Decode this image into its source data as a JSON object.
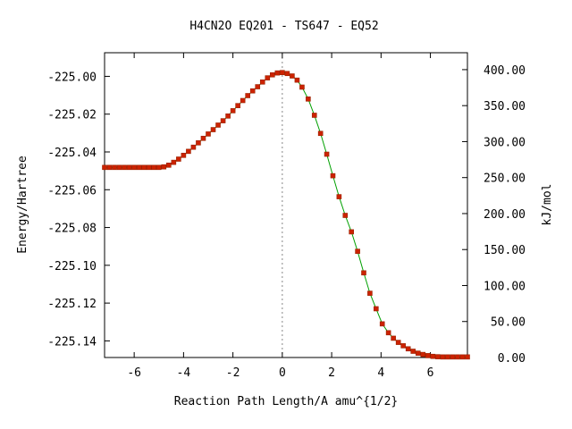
{
  "chart_data": {
    "type": "line",
    "title": "H4CN2O   EQ201 - TS647 - EQ52",
    "xlabel": "Reaction Path Length/A amu^{1/2}",
    "ylabel": "Energy/Hartree",
    "y2label": "kJ/mol",
    "xlim": [
      -7.2,
      7.5
    ],
    "ylim": [
      -225.1488,
      -224.9875
    ],
    "y2lim": [
      0,
      423.5
    ],
    "x_ticks": [
      -6,
      -4,
      -2,
      0,
      2,
      4,
      6
    ],
    "x_tick_labels": [
      "-6",
      "-4",
      "-2",
      "0",
      "2",
      "4",
      "6"
    ],
    "y_ticks": [
      -225.0,
      -225.02,
      -225.04,
      -225.06,
      -225.08,
      -225.1,
      -225.12,
      -225.14
    ],
    "y_tick_labels": [
      "-225.00",
      "-225.02",
      "-225.04",
      "-225.06",
      "-225.08",
      "-225.10",
      "-225.12",
      "-225.14"
    ],
    "y2_ticks": [
      0,
      50,
      100,
      150,
      200,
      250,
      300,
      350,
      400
    ],
    "y2_tick_labels": [
      "0.00",
      "50.00",
      "100.00",
      "150.00",
      "200.00",
      "250.00",
      "300.00",
      "350.00",
      "400.00"
    ],
    "ts_marker_x": 0,
    "grid": false,
    "line_color": "#00a000",
    "point_color": "#cc2200",
    "ts_line_color": "#888888",
    "series": [
      {
        "x": [
          -7.2,
          -7.0,
          -6.8,
          -6.6,
          -6.4,
          -6.2,
          -6.0,
          -5.8,
          -5.6,
          -5.4,
          -5.2,
          -5.0,
          -4.8,
          -4.6,
          -4.4,
          -4.2,
          -4.0,
          -3.8,
          -3.6,
          -3.4,
          -3.2,
          -3.0,
          -2.8,
          -2.6,
          -2.4,
          -2.2,
          -2.0,
          -1.8,
          -1.6,
          -1.4,
          -1.2,
          -1.0,
          -0.8,
          -0.6,
          -0.4,
          -0.2,
          0.0,
          0.2,
          0.4,
          0.6,
          0.8,
          1.05,
          1.3,
          1.55,
          1.8,
          2.05,
          2.3,
          2.55,
          2.8,
          3.05,
          3.3,
          3.55,
          3.8,
          4.05,
          4.3,
          4.5,
          4.7,
          4.9,
          5.1,
          5.3,
          5.5,
          5.7,
          5.9,
          6.1,
          6.3,
          6.5,
          6.7,
          6.9,
          7.1,
          7.3,
          7.5
        ],
        "y": [
          -225.0482,
          -225.0482,
          -225.0482,
          -225.0482,
          -225.0482,
          -225.0482,
          -225.0482,
          -225.0482,
          -225.0482,
          -225.0482,
          -225.0482,
          -225.0482,
          -225.0479,
          -225.047,
          -225.0455,
          -225.0438,
          -225.0418,
          -225.0397,
          -225.0375,
          -225.0352,
          -225.0328,
          -225.0305,
          -225.0282,
          -225.0258,
          -225.0235,
          -225.021,
          -225.0182,
          -225.0155,
          -225.0128,
          -225.0102,
          -225.0077,
          -225.0055,
          -225.003,
          -225.0008,
          -224.9992,
          -224.9982,
          -224.998,
          -224.9985,
          -224.9998,
          -225.002,
          -225.0057,
          -225.012,
          -225.0206,
          -225.0302,
          -225.0412,
          -225.0526,
          -225.0637,
          -225.0736,
          -225.0823,
          -225.0926,
          -225.104,
          -225.1148,
          -225.123,
          -225.131,
          -225.1357,
          -225.1386,
          -225.1408,
          -225.1426,
          -225.1442,
          -225.1455,
          -225.1465,
          -225.1472,
          -225.1478,
          -225.1482,
          -225.1484,
          -225.1485,
          -225.1485,
          -225.1485,
          -225.1485,
          -225.1485,
          -225.1485
        ]
      }
    ]
  }
}
